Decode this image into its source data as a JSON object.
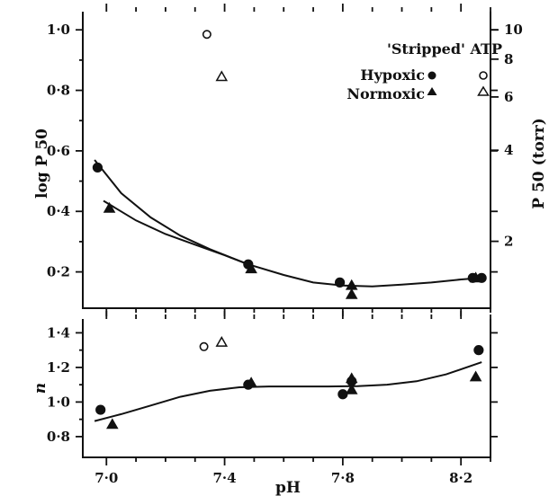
{
  "chart_data": [
    {
      "type": "scatter",
      "panel": "top",
      "xlabel": "pH",
      "ylabel": "log P 50",
      "y2label": "P 50 (torr)",
      "xlim": [
        6.92,
        8.3
      ],
      "ylim": [
        0.08,
        1.06
      ],
      "x_ticks": [
        "7·0",
        "7·4",
        "7·8",
        "8·2"
      ],
      "x_tick_values": [
        7.0,
        7.4,
        7.8,
        8.2
      ],
      "y_ticks": [
        "0·2",
        "0·4",
        "0·6",
        "0·8",
        "1·0"
      ],
      "y_tick_values": [
        0.2,
        0.4,
        0.6,
        0.8,
        1.0
      ],
      "y2_ticks": [
        "2",
        "4",
        "6",
        "8",
        "10"
      ],
      "y2_tick_values": [
        2,
        4,
        6,
        8,
        10
      ],
      "legend": {
        "title": "'Stripped' ATP",
        "entries": [
          {
            "label": "Hypoxic",
            "filled_marker": "circle",
            "stripped_marker": "open-circle"
          },
          {
            "label": "Normoxic",
            "filled_marker": "triangle",
            "stripped_marker": "open-triangle"
          }
        ],
        "placement": "top-right"
      },
      "series": [
        {
          "name": "Hypoxic",
          "marker": "circle",
          "fill": "filled",
          "x": [
            6.97,
            7.48,
            7.79,
            8.24,
            8.27
          ],
          "y": [
            0.545,
            0.225,
            0.165,
            0.18,
            0.18
          ]
        },
        {
          "name": "Normoxic",
          "marker": "triangle",
          "fill": "filled",
          "x": [
            7.01,
            7.49,
            7.83,
            7.83,
            8.25
          ],
          "y": [
            0.41,
            0.21,
            0.155,
            0.125,
            0.18
          ]
        },
        {
          "name": "Hypoxic 'Stripped' ATP",
          "marker": "circle",
          "fill": "open",
          "x": [
            7.34
          ],
          "y": [
            0.985
          ]
        },
        {
          "name": "Normoxic 'Stripped' ATP",
          "marker": "triangle",
          "fill": "open",
          "x": [
            7.39
          ],
          "y": [
            0.845
          ]
        }
      ],
      "curves": [
        {
          "x": [
            6.96,
            7.05,
            7.15,
            7.25,
            7.35,
            7.48,
            7.6,
            7.7,
            7.8,
            7.9,
            8.0,
            8.1,
            8.2,
            8.27
          ],
          "y": [
            0.57,
            0.46,
            0.38,
            0.32,
            0.275,
            0.225,
            0.19,
            0.165,
            0.155,
            0.152,
            0.158,
            0.165,
            0.175,
            0.18
          ]
        },
        {
          "x": [
            6.99,
            7.1,
            7.2,
            7.3,
            7.4,
            7.48
          ],
          "y": [
            0.435,
            0.37,
            0.325,
            0.29,
            0.255,
            0.225
          ]
        }
      ]
    },
    {
      "type": "scatter",
      "panel": "bottom",
      "xlabel": "pH",
      "ylabel": "n",
      "xlim": [
        6.92,
        8.3
      ],
      "ylim": [
        0.68,
        1.48
      ],
      "x_ticks": [
        "7·0",
        "7·4",
        "7·8",
        "8·2"
      ],
      "x_tick_values": [
        7.0,
        7.4,
        7.8,
        8.2
      ],
      "y_ticks": [
        "0·8",
        "1·0",
        "1·2",
        "1·4"
      ],
      "y_tick_values": [
        0.8,
        1.0,
        1.2,
        1.4
      ],
      "series": [
        {
          "name": "Hypoxic",
          "marker": "circle",
          "fill": "filled",
          "x": [
            6.98,
            7.48,
            7.8,
            7.83,
            8.26
          ],
          "y": [
            0.955,
            1.1,
            1.045,
            1.12,
            1.3
          ]
        },
        {
          "name": "Normoxic",
          "marker": "triangle",
          "fill": "filled",
          "x": [
            7.02,
            7.49,
            7.83,
            7.83,
            8.25
          ],
          "y": [
            0.87,
            1.11,
            1.07,
            1.135,
            1.145
          ]
        },
        {
          "name": "Hypoxic 'Stripped' ATP",
          "marker": "circle",
          "fill": "open",
          "x": [
            7.33
          ],
          "y": [
            1.32
          ]
        },
        {
          "name": "Normoxic 'Stripped' ATP",
          "marker": "triangle",
          "fill": "open",
          "x": [
            7.39
          ],
          "y": [
            1.345
          ]
        }
      ],
      "curves": [
        {
          "x": [
            6.96,
            7.05,
            7.15,
            7.25,
            7.35,
            7.45,
            7.55,
            7.65,
            7.75,
            7.85,
            7.95,
            8.05,
            8.15,
            8.27
          ],
          "y": [
            0.89,
            0.93,
            0.98,
            1.03,
            1.065,
            1.085,
            1.09,
            1.09,
            1.09,
            1.092,
            1.1,
            1.12,
            1.16,
            1.23
          ]
        }
      ]
    }
  ]
}
